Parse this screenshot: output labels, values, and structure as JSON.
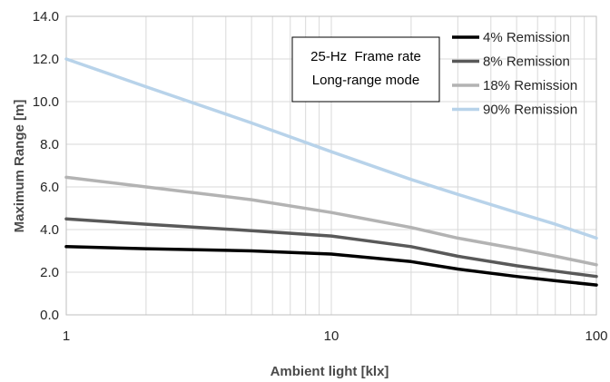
{
  "chart_data": {
    "type": "line",
    "xlabel": "Ambient light [klx]",
    "ylabel": "Maximum Range [m]",
    "xscale": "log",
    "xlim": [
      1,
      100
    ],
    "ylim": [
      0,
      14
    ],
    "x_ticks": [
      1,
      10,
      100
    ],
    "x_tick_labels": [
      "1",
      "10",
      "100"
    ],
    "y_ticks": [
      0,
      2,
      4,
      6,
      8,
      10,
      12,
      14
    ],
    "y_tick_labels": [
      "0.0",
      "2.0",
      "4.0",
      "6.0",
      "8.0",
      "10.0",
      "12.0",
      "14.0"
    ],
    "grid": true,
    "legend_position": "top-right",
    "annotation": [
      "25-Hz  Frame rate",
      "Long-range mode"
    ],
    "series": [
      {
        "name": "4% Remission",
        "color": "#000000",
        "x": [
          1,
          2,
          5,
          10,
          20,
          30,
          50,
          70,
          100
        ],
        "y": [
          3.2,
          3.1,
          3.0,
          2.85,
          2.5,
          2.15,
          1.8,
          1.6,
          1.4
        ]
      },
      {
        "name": "8% Remission",
        "color": "#595959",
        "x": [
          1,
          2,
          5,
          10,
          20,
          30,
          50,
          70,
          100
        ],
        "y": [
          4.5,
          4.25,
          3.95,
          3.7,
          3.2,
          2.75,
          2.3,
          2.05,
          1.8
        ]
      },
      {
        "name": "18% Remission",
        "color": "#b3b3b3",
        "x": [
          1,
          2,
          5,
          10,
          20,
          30,
          50,
          70,
          100
        ],
        "y": [
          6.45,
          6.0,
          5.4,
          4.8,
          4.1,
          3.6,
          3.1,
          2.75,
          2.35
        ]
      },
      {
        "name": "90% Remission",
        "color": "#b8d3ea",
        "x": [
          1,
          2,
          5,
          10,
          20,
          30,
          50,
          70,
          100
        ],
        "y": [
          12.0,
          10.7,
          9.0,
          7.65,
          6.35,
          5.65,
          4.8,
          4.25,
          3.6
        ]
      }
    ]
  }
}
